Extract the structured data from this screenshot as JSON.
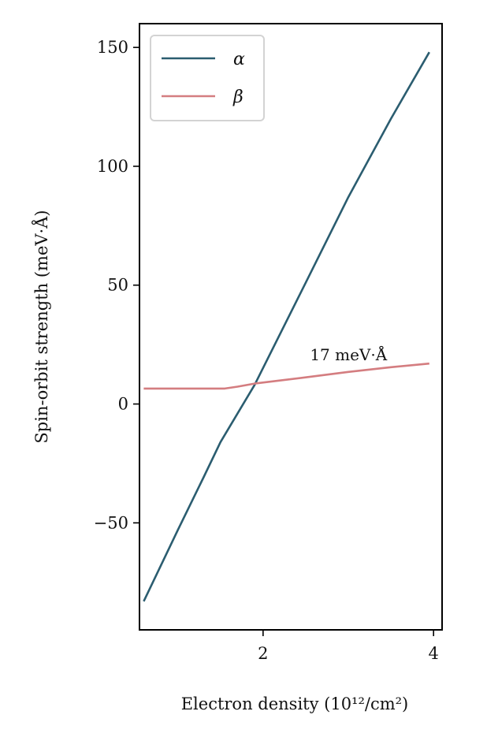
{
  "chart_data": {
    "type": "line",
    "xlabel": "Electron density (10¹²/cm²)",
    "ylabel": "Spin-orbit strength (meV·Å)",
    "xlim": [
      0.55,
      4.1
    ],
    "ylim": [
      -95,
      160
    ],
    "xticks": [
      2,
      4
    ],
    "yticks": [
      -50,
      0,
      50,
      100,
      150
    ],
    "tick_labels": {
      "x": [
        "2",
        "4"
      ],
      "y": [
        "−50",
        "0",
        "50",
        "100",
        "150"
      ]
    },
    "legend_position": "top-left",
    "grid": false,
    "annotation": {
      "text": "17 meV·Å",
      "x": 2.55,
      "y": 19
    },
    "series": [
      {
        "name": "α",
        "color": "#2b5d70",
        "x": [
          0.6,
          1.0,
          1.3,
          1.5,
          1.9,
          2.5,
          3.0,
          3.5,
          3.95
        ],
        "y": [
          -83,
          -53,
          -31,
          -16,
          8,
          51,
          87,
          120,
          148
        ]
      },
      {
        "name": "β",
        "color": "#d47d80",
        "x": [
          0.6,
          1.0,
          1.3,
          1.55,
          1.7,
          1.9,
          2.5,
          3.0,
          3.5,
          3.95
        ],
        "y": [
          6.5,
          6.5,
          6.5,
          6.5,
          7.3,
          8.6,
          11.2,
          13.5,
          15.5,
          17
        ]
      }
    ]
  }
}
